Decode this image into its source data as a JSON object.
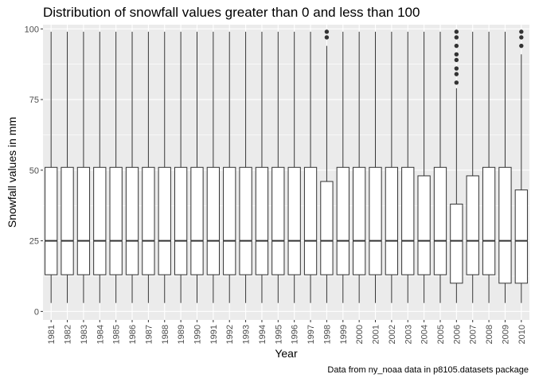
{
  "chart_data": {
    "type": "boxplot",
    "title": "Distribution of snowfall values greater than 0 and less than 100",
    "xlabel": "Year",
    "ylabel": "Snowfall values in mm",
    "caption": "Data from ny_noaa data in p8105.datasets package",
    "ylim": [
      -3,
      101.5
    ],
    "yticks": [
      0,
      25,
      50,
      75,
      100
    ],
    "grid": true,
    "categories": [
      "1981",
      "1982",
      "1983",
      "1984",
      "1985",
      "1986",
      "1987",
      "1988",
      "1989",
      "1990",
      "1991",
      "1992",
      "1993",
      "1994",
      "1995",
      "1996",
      "1997",
      "1998",
      "1999",
      "2000",
      "2001",
      "2002",
      "2003",
      "2004",
      "2005",
      "2006",
      "2007",
      "2008",
      "2009",
      "2010"
    ],
    "boxes": [
      {
        "min": 3,
        "q1": 13,
        "median": 25,
        "q3": 51,
        "max": 99,
        "outliers": []
      },
      {
        "min": 3,
        "q1": 13,
        "median": 25,
        "q3": 51,
        "max": 99,
        "outliers": []
      },
      {
        "min": 3,
        "q1": 13,
        "median": 25,
        "q3": 51,
        "max": 99,
        "outliers": []
      },
      {
        "min": 3,
        "q1": 13,
        "median": 25,
        "q3": 51,
        "max": 99,
        "outliers": []
      },
      {
        "min": 3,
        "q1": 13,
        "median": 25,
        "q3": 51,
        "max": 99,
        "outliers": []
      },
      {
        "min": 3,
        "q1": 13,
        "median": 25,
        "q3": 51,
        "max": 99,
        "outliers": []
      },
      {
        "min": 3,
        "q1": 13,
        "median": 25,
        "q3": 51,
        "max": 99,
        "outliers": []
      },
      {
        "min": 3,
        "q1": 13,
        "median": 25,
        "q3": 51,
        "max": 99,
        "outliers": []
      },
      {
        "min": 3,
        "q1": 13,
        "median": 25,
        "q3": 51,
        "max": 99,
        "outliers": []
      },
      {
        "min": 3,
        "q1": 13,
        "median": 25,
        "q3": 51,
        "max": 99,
        "outliers": []
      },
      {
        "min": 3,
        "q1": 13,
        "median": 25,
        "q3": 51,
        "max": 99,
        "outliers": []
      },
      {
        "min": 3,
        "q1": 13,
        "median": 25,
        "q3": 51,
        "max": 99,
        "outliers": []
      },
      {
        "min": 3,
        "q1": 13,
        "median": 25,
        "q3": 51,
        "max": 99,
        "outliers": []
      },
      {
        "min": 3,
        "q1": 13,
        "median": 25,
        "q3": 51,
        "max": 99,
        "outliers": []
      },
      {
        "min": 3,
        "q1": 13,
        "median": 25,
        "q3": 51,
        "max": 99,
        "outliers": []
      },
      {
        "min": 3,
        "q1": 13,
        "median": 25,
        "q3": 51,
        "max": 99,
        "outliers": []
      },
      {
        "min": 3,
        "q1": 13,
        "median": 25,
        "q3": 51,
        "max": 99,
        "outliers": []
      },
      {
        "min": 3,
        "q1": 13,
        "median": 25,
        "q3": 46,
        "max": 94,
        "outliers": [
          97,
          99
        ]
      },
      {
        "min": 3,
        "q1": 13,
        "median": 25,
        "q3": 51,
        "max": 99,
        "outliers": []
      },
      {
        "min": 3,
        "q1": 13,
        "median": 25,
        "q3": 51,
        "max": 99,
        "outliers": []
      },
      {
        "min": 3,
        "q1": 13,
        "median": 25,
        "q3": 51,
        "max": 99,
        "outliers": []
      },
      {
        "min": 3,
        "q1": 13,
        "median": 25,
        "q3": 51,
        "max": 99,
        "outliers": []
      },
      {
        "min": 3,
        "q1": 13,
        "median": 25,
        "q3": 51,
        "max": 99,
        "outliers": []
      },
      {
        "min": 3,
        "q1": 13,
        "median": 25,
        "q3": 48,
        "max": 99,
        "outliers": []
      },
      {
        "min": 3,
        "q1": 13,
        "median": 25,
        "q3": 51,
        "max": 99,
        "outliers": []
      },
      {
        "min": 3,
        "q1": 10,
        "median": 25,
        "q3": 38,
        "max": 79,
        "outliers": [
          81,
          84,
          86,
          89,
          91,
          94,
          97,
          99
        ]
      },
      {
        "min": 3,
        "q1": 13,
        "median": 25,
        "q3": 48,
        "max": 99,
        "outliers": []
      },
      {
        "min": 3,
        "q1": 13,
        "median": 25,
        "q3": 51,
        "max": 99,
        "outliers": []
      },
      {
        "min": 3,
        "q1": 10,
        "median": 25,
        "q3": 51,
        "max": 99,
        "outliers": []
      },
      {
        "min": 3,
        "q1": 10,
        "median": 25,
        "q3": 43,
        "max": 91,
        "outliers": [
          94,
          97,
          99
        ]
      }
    ],
    "colors": {
      "panel": "#ebebeb",
      "grid": "#ffffff",
      "box_fill": "#ffffff",
      "box_line": "#333333",
      "outlier": "#333333"
    }
  }
}
